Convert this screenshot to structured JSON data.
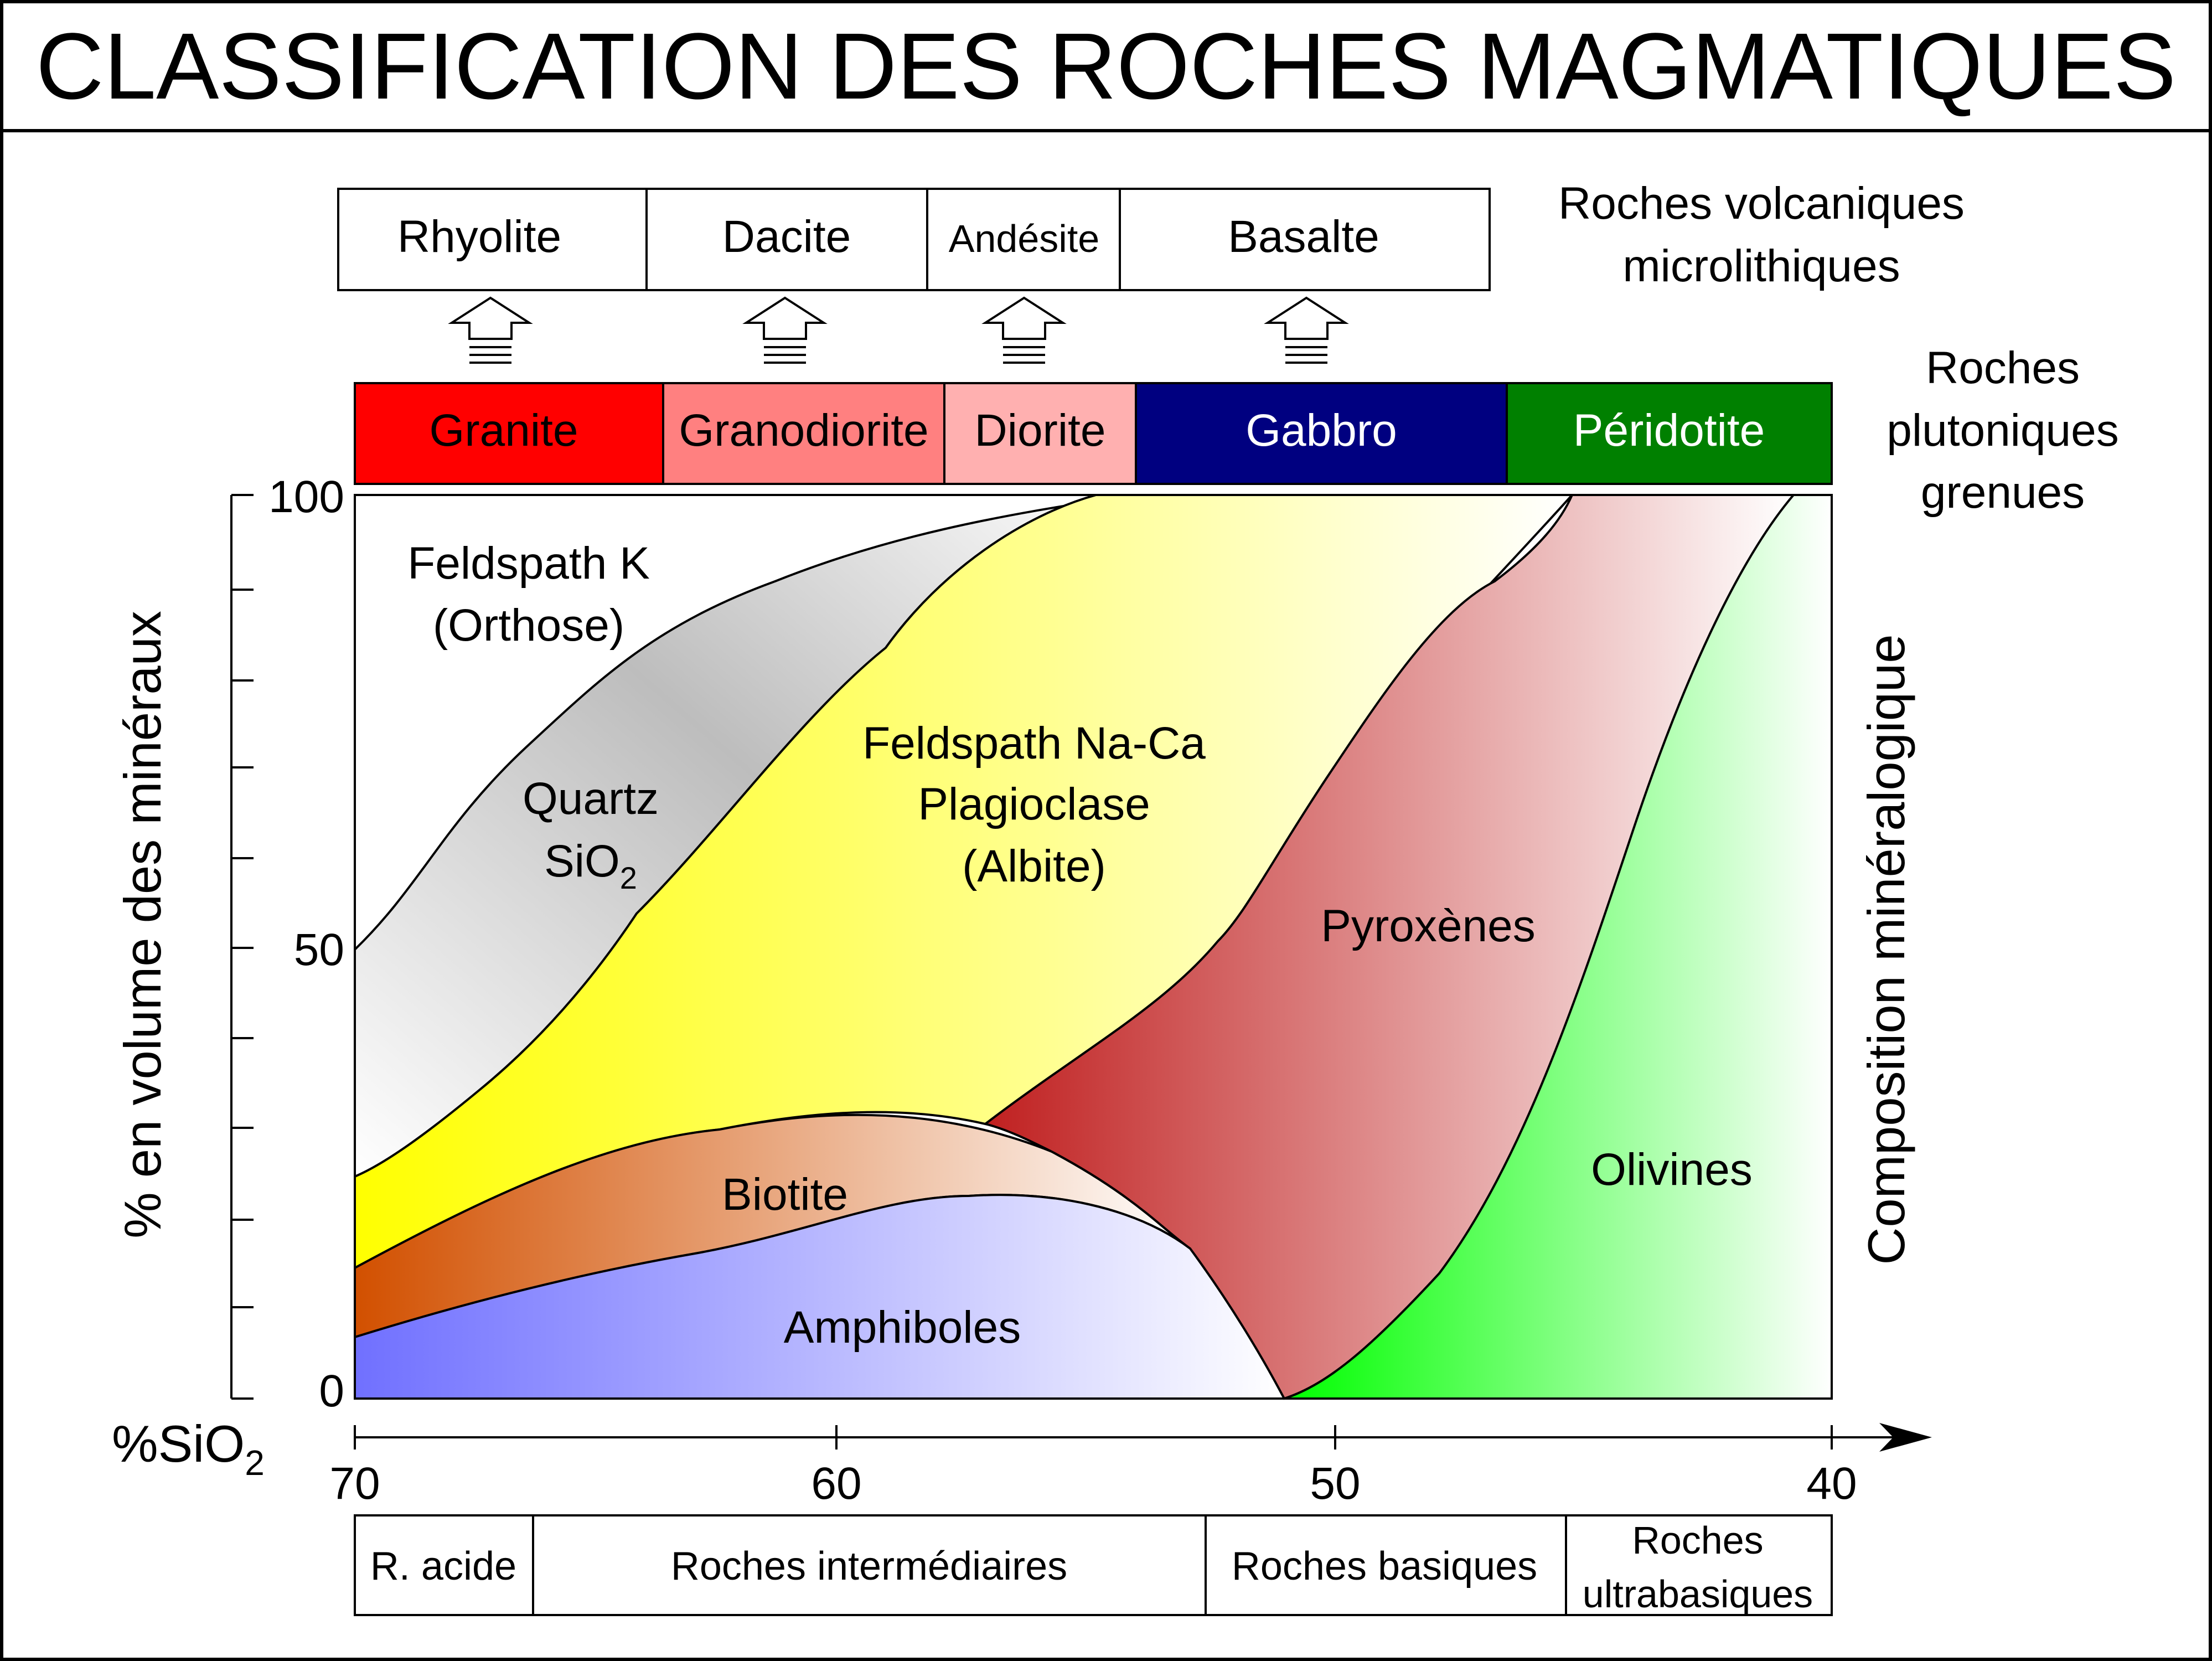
{
  "title": "CLASSIFICATION DES ROCHES MAGMATIQUES",
  "volcanic": {
    "heading_line1": "Roches volcaniques",
    "heading_line2": "microlithiques",
    "rocks": [
      "Rhyolite",
      "Dacite",
      "Andésite",
      "Basalte"
    ]
  },
  "plutonic": {
    "heading_line1": "Roches",
    "heading_line2": "plutoniques",
    "heading_line3": "grenues",
    "rocks": [
      {
        "name": "Granite",
        "color": "#ff0000"
      },
      {
        "name": "Granodiorite",
        "color": "#ff8080"
      },
      {
        "name": "Diorite",
        "color": "#ffb0b0"
      },
      {
        "name": "Gabbro",
        "color": "#000080"
      },
      {
        "name": "Péridotite",
        "color": "#008000"
      }
    ]
  },
  "y_axis": {
    "label": "% en volume des minéraux",
    "ticks": [
      "100",
      "50",
      "0"
    ]
  },
  "right_axis_label": "Composition minéralogique",
  "x_axis": {
    "label_main": "%SiO",
    "label_sub": "2",
    "ticks": [
      "70",
      "60",
      "50",
      "40"
    ]
  },
  "minerals": {
    "feldspath_k_line1": "Feldspath K",
    "feldspath_k_line2": "(Orthose)",
    "quartz_line1": "Quartz",
    "quartz_line2": "SiO",
    "quartz_sub": "2",
    "plagioclase_line1": "Feldspath Na-Ca",
    "plagioclase_line2": "Plagioclase",
    "plagioclase_line3": "(Albite)",
    "pyroxenes": "Pyroxènes",
    "biotite": "Biotite",
    "amphiboles": "Amphiboles",
    "olivines": "Olivines"
  },
  "categories": {
    "acide": "R. acide",
    "intermediaires": "Roches intermédiaires",
    "basiques": "Roches basiques",
    "ultra_line1": "Roches",
    "ultra_line2": "ultrabasiques"
  }
}
